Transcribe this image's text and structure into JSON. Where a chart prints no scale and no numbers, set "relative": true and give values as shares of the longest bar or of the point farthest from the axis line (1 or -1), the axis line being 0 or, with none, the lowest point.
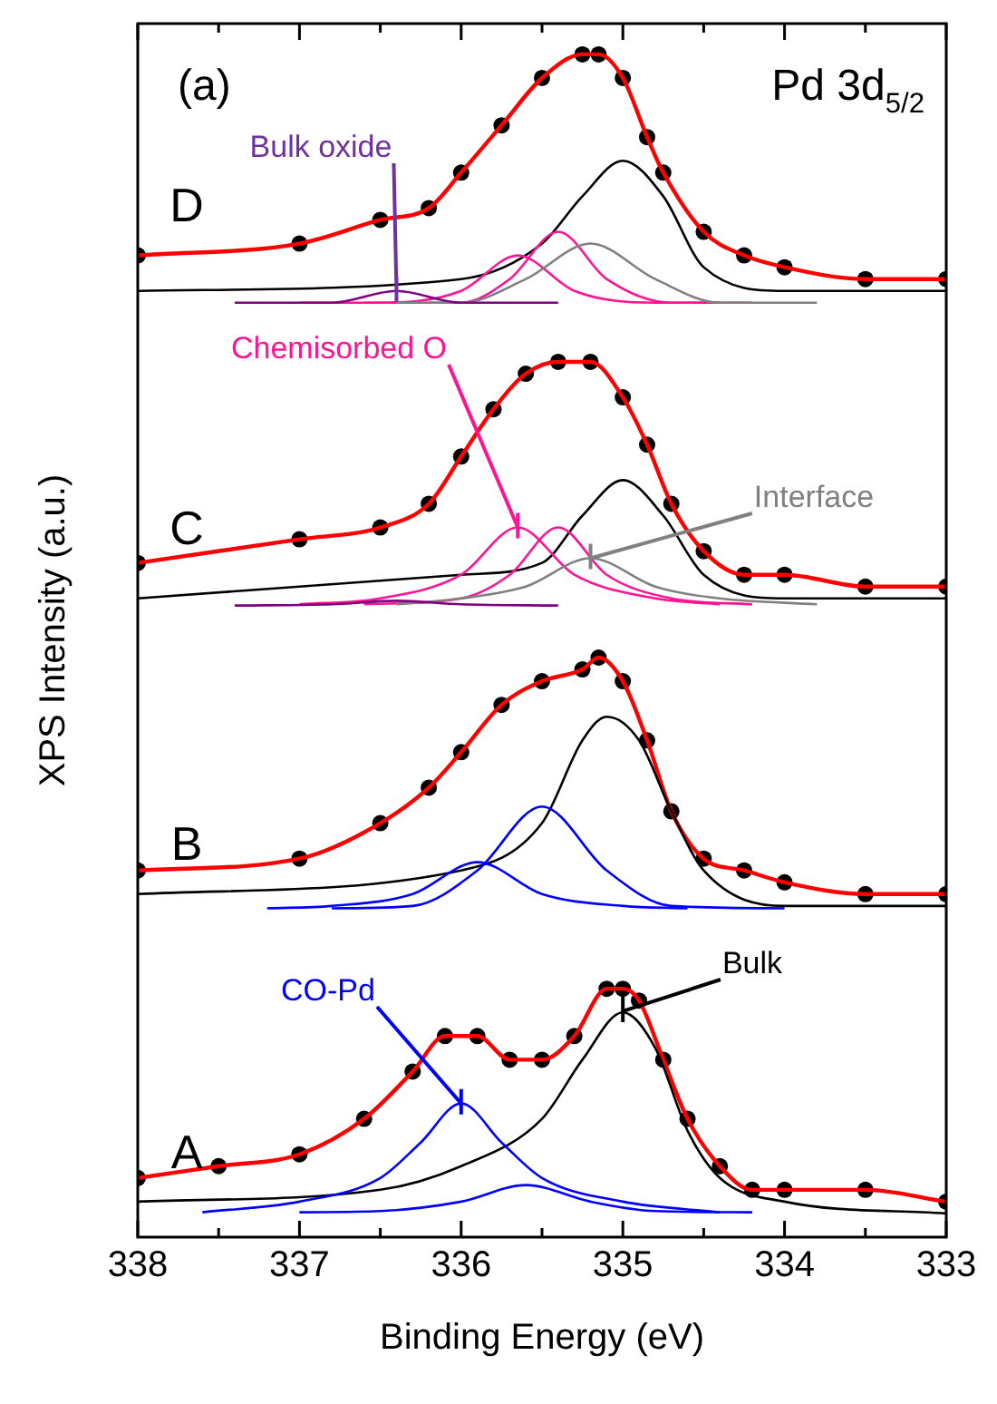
{
  "chart_data": {
    "type": "line",
    "xlabel": "Binding Energy (eV)",
    "ylabel": "XPS Intensity (a.u.)",
    "relative": true,
    "xlim": [
      338,
      333
    ],
    "xticks": [
      338,
      {
        "value": 337.5,
        "label": null
      },
      337,
      {
        "value": 336.5,
        "label": null
      },
      336,
      {
        "value": 335.5,
        "label": null
      },
      335,
      {
        "value": 334.5,
        "label": null
      },
      334,
      {
        "value": 333.5,
        "label": null
      },
      333
    ],
    "legend": false,
    "grid": false,
    "annotations": [
      "(a)",
      "Pd 3d$_{5/2}$",
      "D",
      "C",
      "B",
      "A",
      {
        "text": "Bulk oxide",
        "x": 336.4,
        "y": 0.8
      },
      {
        "text": "Chemisorbed O",
        "x": 335.65,
        "y": 0.6
      },
      {
        "text": "Interface",
        "x": 335.2,
        "y": 0.574
      },
      {
        "text": "CO-Pd",
        "x": 336.0,
        "y": 0.113
      },
      {
        "text": "Bulk",
        "x": 335.0,
        "y": 0.191
      }
    ],
    "series": [
      {
        "type": "scatter",
        "marker": "circle",
        "color": "#000000",
        "x": [
          338,
          337,
          336.5,
          336.2,
          336,
          335.75,
          335.5,
          335.25,
          335.15,
          335,
          334.85,
          334.75,
          334.5,
          334.25,
          334,
          333.5,
          333
        ],
        "values": [
          0.83,
          0.84,
          0.86,
          0.87,
          0.9,
          0.94,
          0.98,
          1.0,
          1.0,
          0.98,
          0.93,
          0.9,
          0.85,
          0.83,
          0.82,
          0.81,
          0.81
        ]
      },
      {
        "color": "#ff0000",
        "x": [
          338,
          337,
          336.5,
          336.2,
          336,
          335.75,
          335.5,
          335.25,
          335.15,
          335,
          334.85,
          334.75,
          334.5,
          334.25,
          334,
          333.5,
          333
        ],
        "values": [
          0.83,
          0.84,
          0.86,
          0.87,
          0.9,
          0.94,
          0.98,
          1.0,
          1.0,
          0.98,
          0.93,
          0.9,
          0.85,
          0.83,
          0.82,
          0.81,
          0.81
        ]
      },
      {
        "color": "#000000",
        "x": [
          338,
          336,
          335.5,
          335.25,
          335,
          334.75,
          334.5,
          334,
          333
        ],
        "values": [
          0.8,
          0.81,
          0.84,
          0.88,
          0.91,
          0.88,
          0.82,
          0.8,
          0.8
        ]
      },
      {
        "color": "#ff1493",
        "x": [
          337,
          336.5,
          336,
          335.65,
          335.3,
          334.8,
          334.4
        ],
        "values": [
          0.79,
          0.79,
          0.8,
          0.83,
          0.8,
          0.79,
          0.79
        ]
      },
      {
        "color": "#ff1493",
        "x": [
          336.6,
          336,
          335.7,
          335.4,
          335.1,
          334.7,
          334.2
        ],
        "values": [
          0.79,
          0.79,
          0.81,
          0.85,
          0.81,
          0.79,
          0.79
        ]
      },
      {
        "color": "#808080",
        "x": [
          336.4,
          336,
          335.6,
          335.2,
          334.8,
          334.4,
          333.8
        ],
        "values": [
          0.79,
          0.79,
          0.81,
          0.84,
          0.81,
          0.79,
          0.79
        ]
      },
      {
        "color": "#800080",
        "x": [
          337.4,
          336.8,
          336.4,
          336,
          335.4
        ],
        "values": [
          0.79,
          0.79,
          0.8,
          0.79,
          0.79
        ]
      },
      {
        "type": "scatter",
        "marker": "circle",
        "color": "#000000",
        "x": [
          338,
          337,
          336.5,
          336.2,
          336,
          335.8,
          335.6,
          335.4,
          335.2,
          335,
          334.85,
          334.7,
          334.5,
          334.25,
          334,
          333.5,
          333
        ],
        "values": [
          0.57,
          0.59,
          0.6,
          0.62,
          0.66,
          0.7,
          0.73,
          0.74,
          0.74,
          0.71,
          0.67,
          0.62,
          0.58,
          0.56,
          0.56,
          0.55,
          0.55
        ]
      },
      {
        "color": "#ff0000",
        "x": [
          338,
          337,
          336.5,
          336.2,
          336,
          335.8,
          335.6,
          335.4,
          335.2,
          335,
          334.85,
          334.7,
          334.5,
          334.25,
          334,
          333.5,
          333
        ],
        "values": [
          0.57,
          0.59,
          0.6,
          0.62,
          0.66,
          0.7,
          0.73,
          0.74,
          0.74,
          0.71,
          0.67,
          0.62,
          0.58,
          0.56,
          0.56,
          0.55,
          0.55
        ]
      },
      {
        "color": "#000000",
        "x": [
          338,
          336,
          335.5,
          335.25,
          335,
          334.75,
          334.5,
          334,
          333
        ],
        "values": [
          0.54,
          0.56,
          0.57,
          0.61,
          0.64,
          0.61,
          0.56,
          0.54,
          0.54
        ]
      },
      {
        "color": "#ff1493",
        "x": [
          337,
          336.5,
          336,
          335.65,
          335.3,
          334.8,
          334.4
        ],
        "values": [
          0.535,
          0.54,
          0.56,
          0.6,
          0.56,
          0.54,
          0.535
        ]
      },
      {
        "color": "#ff1493",
        "x": [
          336.6,
          336,
          335.7,
          335.4,
          335.1,
          334.7,
          334.2
        ],
        "values": [
          0.535,
          0.54,
          0.56,
          0.6,
          0.56,
          0.54,
          0.535
        ]
      },
      {
        "color": "#808080",
        "x": [
          336.4,
          336,
          335.6,
          335.2,
          334.8,
          334.4,
          333.8
        ],
        "values": [
          0.535,
          0.54,
          0.55,
          0.574,
          0.55,
          0.54,
          0.535
        ]
      },
      {
        "color": "#800080",
        "x": [
          337.4,
          336.8,
          336.4,
          336,
          335.4
        ],
        "values": [
          0.534,
          0.535,
          0.538,
          0.535,
          0.534
        ]
      },
      {
        "type": "scatter",
        "marker": "circle",
        "color": "#000000",
        "x": [
          338,
          337,
          336.5,
          336.2,
          336,
          335.75,
          335.5,
          335.25,
          335.15,
          335,
          334.85,
          334.7,
          334.5,
          334.25,
          334,
          333.5,
          333
        ],
        "values": [
          0.31,
          0.32,
          0.35,
          0.38,
          0.41,
          0.45,
          0.47,
          0.48,
          0.49,
          0.47,
          0.42,
          0.36,
          0.32,
          0.31,
          0.3,
          0.29,
          0.29
        ]
      },
      {
        "color": "#ff0000",
        "x": [
          338,
          337,
          336.5,
          336.2,
          336,
          335.75,
          335.5,
          335.25,
          335.15,
          335,
          334.85,
          334.7,
          334.5,
          334.25,
          334,
          333.5,
          333
        ],
        "values": [
          0.31,
          0.32,
          0.35,
          0.38,
          0.41,
          0.45,
          0.47,
          0.48,
          0.49,
          0.47,
          0.42,
          0.36,
          0.32,
          0.31,
          0.3,
          0.29,
          0.29
        ]
      },
      {
        "color": "#000000",
        "x": [
          338,
          336,
          335.5,
          335.25,
          335.1,
          334.9,
          334.7,
          334.5,
          334,
          333
        ],
        "values": [
          0.29,
          0.31,
          0.35,
          0.42,
          0.44,
          0.42,
          0.36,
          0.31,
          0.28,
          0.28
        ]
      },
      {
        "color": "#0000ff",
        "x": [
          337.2,
          336.8,
          336.3,
          335.9,
          335.5,
          335,
          334.6
        ],
        "values": [
          0.278,
          0.28,
          0.29,
          0.317,
          0.29,
          0.28,
          0.278
        ]
      },
      {
        "color": "#0000ff",
        "x": [
          336.8,
          336.3,
          335.9,
          335.5,
          335.1,
          334.7,
          334
        ],
        "values": [
          0.278,
          0.28,
          0.31,
          0.364,
          0.31,
          0.28,
          0.278
        ]
      },
      {
        "type": "scatter",
        "marker": "circle",
        "color": "#000000",
        "x": [
          338,
          337.5,
          337,
          336.6,
          336.3,
          336.1,
          335.9,
          335.7,
          335.5,
          335.3,
          335.1,
          335,
          334.9,
          334.75,
          334.6,
          334.4,
          334.2,
          334,
          333.5,
          333
        ],
        "values": [
          0.05,
          0.06,
          0.07,
          0.1,
          0.14,
          0.17,
          0.17,
          0.15,
          0.15,
          0.17,
          0.21,
          0.21,
          0.2,
          0.15,
          0.1,
          0.06,
          0.04,
          0.04,
          0.04,
          0.03
        ]
      },
      {
        "color": "#ff0000",
        "x": [
          338,
          337.5,
          337,
          336.6,
          336.3,
          336.1,
          335.9,
          335.7,
          335.5,
          335.3,
          335.1,
          335,
          334.9,
          334.75,
          334.6,
          334.4,
          334.2,
          334,
          333.5,
          333
        ],
        "values": [
          0.05,
          0.06,
          0.07,
          0.1,
          0.14,
          0.17,
          0.17,
          0.15,
          0.15,
          0.17,
          0.21,
          0.21,
          0.2,
          0.15,
          0.1,
          0.06,
          0.04,
          0.04,
          0.04,
          0.03
        ]
      },
      {
        "color": "#000000",
        "x": [
          338,
          336.5,
          336,
          335.5,
          335.25,
          335,
          334.8,
          334.6,
          334.4,
          334,
          333
        ],
        "values": [
          0.03,
          0.04,
          0.06,
          0.1,
          0.15,
          0.19,
          0.16,
          0.09,
          0.05,
          0.03,
          0.02
        ]
      },
      {
        "color": "#0000ff",
        "x": [
          337.6,
          337,
          336.5,
          336.25,
          336,
          335.75,
          335.5,
          335,
          334.4
        ],
        "values": [
          0.021,
          0.03,
          0.05,
          0.08,
          0.113,
          0.08,
          0.05,
          0.03,
          0.021
        ]
      },
      {
        "color": "#0000ff",
        "x": [
          337,
          336.5,
          336,
          335.6,
          335.2,
          334.8,
          334.2
        ],
        "values": [
          0.021,
          0.022,
          0.03,
          0.044,
          0.03,
          0.022,
          0.021
        ]
      }
    ]
  }
}
